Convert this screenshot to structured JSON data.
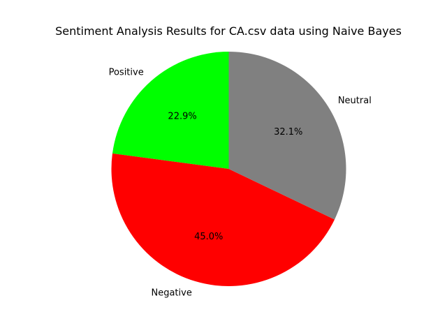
{
  "chart_data": {
    "type": "pie",
    "title": "Sentiment Analysis Results for CA.csv data using Naive Bayes",
    "categories": [
      "Positive",
      "Negative",
      "Neutral"
    ],
    "values": [
      22.9,
      45.0,
      32.1
    ],
    "percent_labels": [
      "22.9%",
      "45.0%",
      "32.1%"
    ],
    "colors": [
      "#00ff00",
      "#ff0000",
      "#808080"
    ],
    "start_angle_deg": 90,
    "direction": "counterclockwise",
    "legend": "none"
  }
}
